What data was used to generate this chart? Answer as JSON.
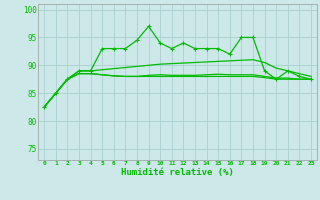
{
  "xlabel": "Humidité relative (%)",
  "background_color": "#cce8e8",
  "grid_color": "#aacfcf",
  "line_color": "#00bb00",
  "xlim": [
    -0.5,
    23.5
  ],
  "ylim": [
    73,
    101
  ],
  "yticks": [
    75,
    80,
    85,
    90,
    95,
    100
  ],
  "xticks": [
    0,
    1,
    2,
    3,
    4,
    5,
    6,
    7,
    8,
    9,
    10,
    11,
    12,
    13,
    14,
    15,
    16,
    17,
    18,
    19,
    20,
    21,
    22,
    23
  ],
  "line_jagged": [
    82.5,
    85.0,
    87.5,
    89.0,
    89.0,
    93.0,
    93.0,
    93.0,
    94.5,
    97.0,
    94.0,
    93.0,
    94.0,
    93.0,
    93.0,
    93.0,
    92.0,
    95.0,
    95.0,
    89.0,
    87.5,
    89.0,
    88.0,
    87.5
  ],
  "line_smooth1": [
    82.5,
    85.0,
    87.5,
    89.0,
    89.0,
    89.2,
    89.4,
    89.6,
    89.8,
    90.0,
    90.2,
    90.3,
    90.4,
    90.5,
    90.6,
    90.7,
    90.8,
    90.9,
    91.0,
    90.5,
    89.5,
    89.0,
    88.5,
    88.0
  ],
  "line_smooth2": [
    82.5,
    85.0,
    87.5,
    88.5,
    88.5,
    88.3,
    88.1,
    88.0,
    88.0,
    88.0,
    88.0,
    88.0,
    88.0,
    88.0,
    88.0,
    88.0,
    88.0,
    88.0,
    88.0,
    87.8,
    87.5,
    87.5,
    87.5,
    87.5
  ],
  "line_smooth3": [
    82.5,
    85.0,
    87.5,
    88.5,
    88.5,
    88.3,
    88.1,
    88.0,
    88.0,
    88.2,
    88.3,
    88.2,
    88.2,
    88.2,
    88.3,
    88.4,
    88.3,
    88.3,
    88.3,
    88.0,
    87.7,
    87.7,
    87.5,
    87.5
  ]
}
